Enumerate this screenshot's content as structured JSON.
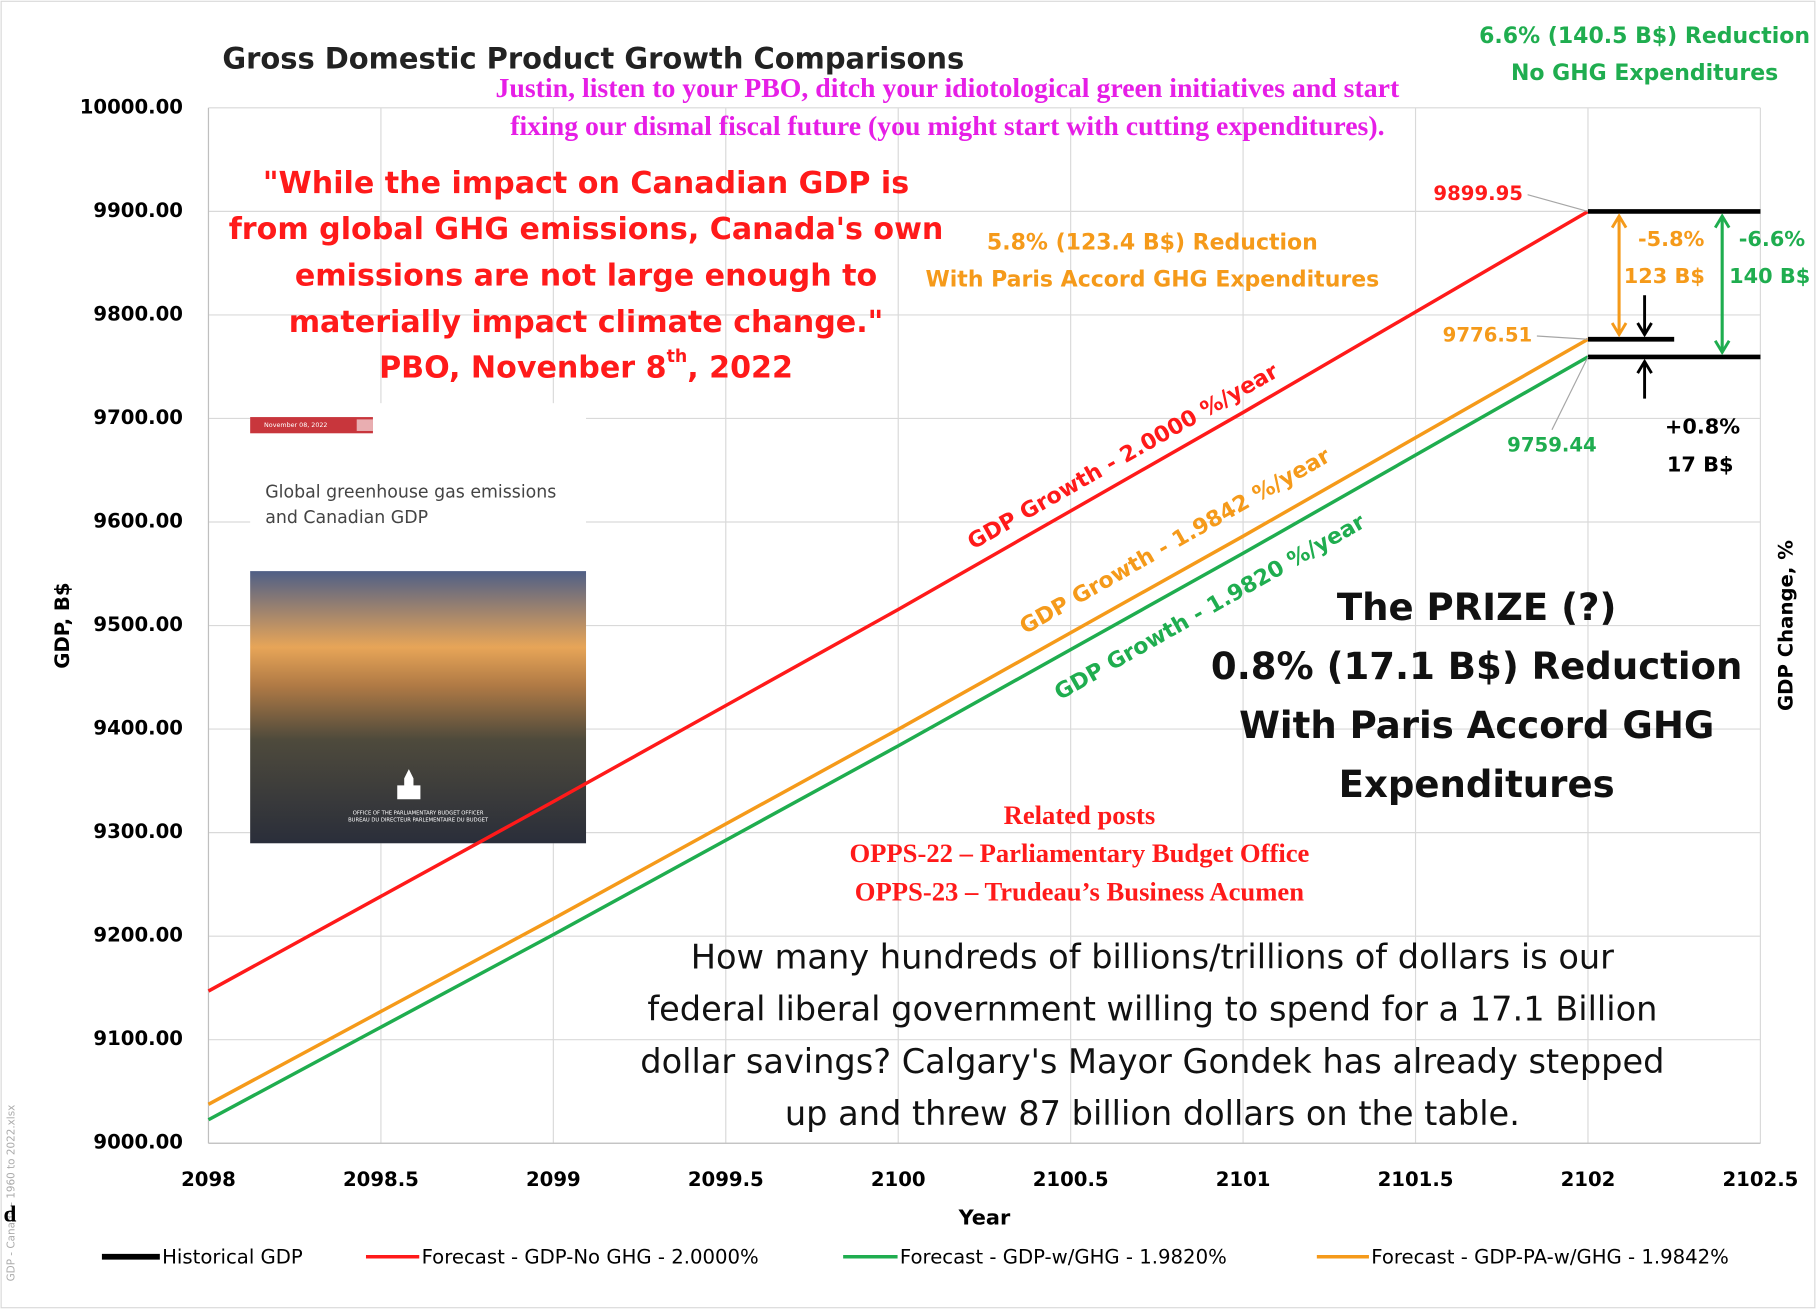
{
  "chart_data": {
    "type": "line",
    "title": "Gross Domestic Product Growth Comparisons",
    "subtitle": [
      "Justin, listen to your PBO, ditch your idiotological green initiatives and start",
      "fixing our dismal fiscal future (you might start with cutting expenditures)."
    ],
    "x_label": "Year",
    "y_label": "GDP, B$",
    "y2_label": "GDP Change, %",
    "x": [
      2098,
      2099,
      2100,
      2101,
      2102
    ],
    "series": [
      {
        "name": "Historical GDP",
        "color": "#000000",
        "values": [
          null,
          null,
          null,
          null,
          null
        ]
      },
      {
        "name": "Forecast - GDP-No GHG - 2.0000%",
        "color": "#ff1a1a",
        "values": [
          9146.98,
          9329.92,
          9515.52,
          9705.83,
          9899.95
        ]
      },
      {
        "name": "Forecast - GDP-w/GHG - 1.9820%",
        "color": "#1fad4f",
        "values": [
          9022.7,
          9201.5,
          9383.8,
          9569.8,
          9759.44
        ]
      },
      {
        "name": "Forecast - GDP-PA-w/GHG - 1.9842%",
        "color": "#f59a1a",
        "values": [
          9037.6,
          9216.9,
          9399.8,
          9586.3,
          9776.51
        ]
      }
    ],
    "xlim": [
      2098,
      2102.5
    ],
    "xticks": [
      2098,
      2098.5,
      2099,
      2099.5,
      2100,
      2100.5,
      2101,
      2101.5,
      2102,
      2102.5
    ],
    "ylim": [
      9000,
      10000
    ],
    "yticks": [
      {
        "value": 9000,
        "label": "9000.00"
      },
      {
        "value": 9100,
        "label": "9100.00"
      },
      {
        "value": 9200,
        "label": "9200.00"
      },
      {
        "value": 9300,
        "label": "9300.00"
      },
      {
        "value": 9400,
        "label": "9400.00"
      },
      {
        "value": 9500,
        "label": "9500.00"
      },
      {
        "value": 9600,
        "label": "9600.00"
      },
      {
        "value": 9700,
        "label": "9700.00"
      },
      {
        "value": 9800,
        "label": "9800.00"
      },
      {
        "value": 9900,
        "label": "9900.00"
      },
      {
        "value": 10000,
        "label": "10000.00"
      }
    ],
    "grid": true,
    "legend": "bottom"
  },
  "annotations": {
    "quote": [
      "\"While the impact on Canadian GDP is",
      "from global GHG emissions, Canada's own",
      "emissions are not large enough to",
      "materially impact climate change.\""
    ],
    "quote_source": [
      "PBO, Novenber 8",
      "th",
      ", 2022"
    ],
    "no_ghg_note": [
      "6.6% (140.5 B$) Reduction",
      "No GHG Expenditures"
    ],
    "paris_note": [
      "5.8% (123.4 B$) Reduction",
      "With Paris Accord GHG Expenditures"
    ],
    "growth_labels": [
      "GDP Growth - 2.0000 %/year",
      "GDP Growth - 1.9842 %/year",
      "GDP Growth - 1.9820 %/year"
    ],
    "diff_labels": [
      "-5.8%",
      "123 B$",
      "-6.6%",
      "140 B$",
      "+0.8%",
      "17 B$"
    ],
    "prize": [
      "The PRIZE (?)",
      "0.8% (17.1 B$) Reduction",
      "With Paris Accord GHG",
      "Expenditures"
    ],
    "related": [
      "Related posts",
      "OPPS-22 – Parliamentary Budget Office",
      "OPPS-23 – Trudeau’s Business Acumen"
    ],
    "question": [
      "How many hundreds of billions/trillions of dollars is our",
      "federal liberal government willing to spend for a 17.1 Billion",
      "dollar savings? Calgary's Mayor Gondek has already stepped",
      "up and threw 87 billion dollars on the table."
    ],
    "report": {
      "date": "November 08, 2022",
      "title": [
        "Global greenhouse gas emissions",
        "and Canadian GDP"
      ],
      "office": [
        "OFFICE OF THE PARLIAMENTARY BUDGET OFFICER",
        "BUREAU DU DIRECTEUR PARLEMENTAIRE DU BUDGET"
      ]
    },
    "watermark": "GDP - Canada - 1960 to 2022.xlsx",
    "fragment": "d"
  }
}
